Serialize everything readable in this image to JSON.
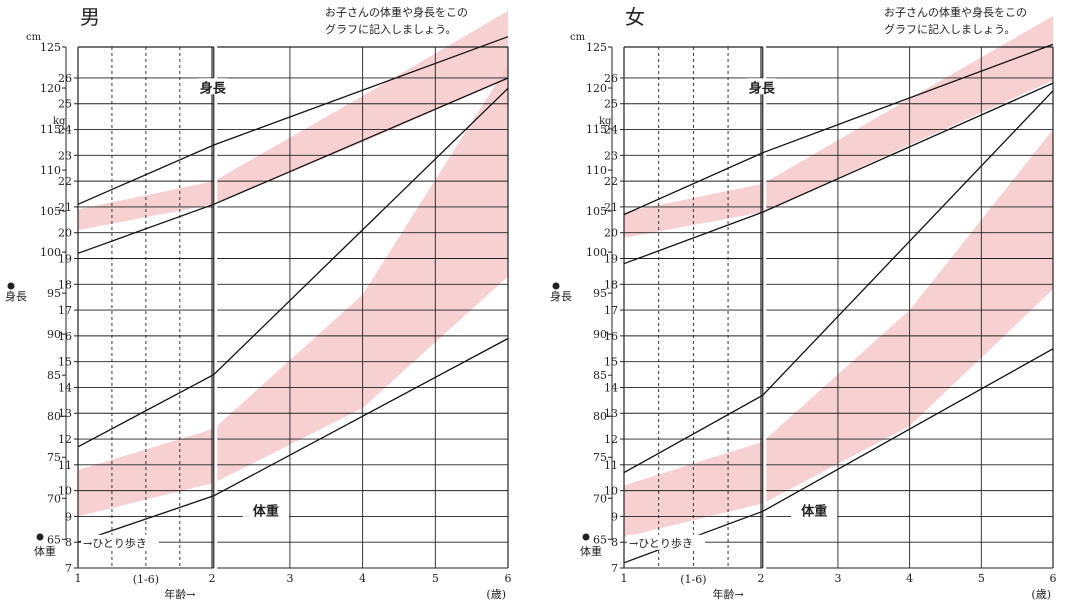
{
  "header": {
    "note_line1": "お子さんの体重や身長をこの",
    "note_line2": "グラフに記入しましょう。"
  },
  "colors": {
    "band": "#f6c9c9",
    "male_title": "#222222",
    "female_title": "#e0464b",
    "grid": "#222222"
  },
  "chart_data": [
    {
      "type": "line",
      "sex_label": "男",
      "title_color": "#222222",
      "height_unit": "cm",
      "weight_unit": "kg",
      "height_axis_label": "身長",
      "weight_axis_label": "体重",
      "height_curve_label": "身長",
      "weight_curve_label": "体重",
      "walking_label": "→ひとり歩き",
      "x_range_label": "(1-6)",
      "xlabel": "年齢→",
      "x_unit": "(歳)",
      "x_ticks": [
        "1",
        "2",
        "3",
        "4",
        "5",
        "6"
      ],
      "height_ticks": [
        65,
        70,
        75,
        80,
        85,
        90,
        95,
        100,
        105,
        110,
        115,
        120,
        125
      ],
      "weight_ticks": [
        7,
        8,
        9,
        10,
        11,
        12,
        13,
        14,
        15,
        16,
        17,
        18,
        19,
        20,
        21,
        22,
        23,
        24,
        25,
        26
      ],
      "ylim_weight": [
        7,
        27.2
      ],
      "ylim_height": [
        61.5,
        125
      ],
      "weight_band": {
        "lower": [
          [
            1,
            9.0
          ],
          [
            2,
            10.3
          ],
          [
            4,
            13.2
          ],
          [
            6,
            18.3
          ]
        ],
        "upper": [
          [
            1,
            10.8
          ],
          [
            2,
            12.4
          ],
          [
            4,
            17.6
          ],
          [
            6,
            26.5
          ]
        ]
      },
      "height_band": {
        "lower": [
          [
            1,
            20.1
          ],
          [
            2,
            21.1
          ],
          [
            4,
            23.5
          ],
          [
            6,
            26.0
          ]
        ],
        "upper": [
          [
            1,
            20.9
          ],
          [
            2,
            22.0
          ],
          [
            4,
            25.3
          ],
          [
            6,
            28.6
          ]
        ]
      },
      "series": [
        {
          "name": "身長 上限",
          "points": [
            [
              1,
              21.1
            ],
            [
              2,
              23.4
            ],
            [
              6,
              27.6
            ]
          ]
        },
        {
          "name": "身長 下限",
          "points": [
            [
              1,
              19.2
            ],
            [
              2,
              21.1
            ],
            [
              6,
              26.0
            ]
          ]
        },
        {
          "name": "体重 上限",
          "points": [
            [
              1,
              11.7
            ],
            [
              2,
              14.5
            ],
            [
              6,
              25.6
            ]
          ]
        },
        {
          "name": "体重 下限",
          "points": [
            [
              1,
              8.0
            ],
            [
              2,
              9.8
            ],
            [
              6,
              15.9
            ]
          ]
        }
      ]
    },
    {
      "type": "line",
      "sex_label": "女",
      "title_color": "#e0464b",
      "height_unit": "cm",
      "weight_unit": "kg",
      "height_axis_label": "身長",
      "weight_axis_label": "体重",
      "height_curve_label": "身長",
      "weight_curve_label": "体重",
      "walking_label": "→ひとり歩き",
      "x_range_label": "(1-6)",
      "xlabel": "年齢→",
      "x_unit": "(歳)",
      "x_ticks": [
        "1",
        "2",
        "3",
        "4",
        "5",
        "6"
      ],
      "height_ticks": [
        65,
        70,
        75,
        80,
        85,
        90,
        95,
        100,
        105,
        110,
        115,
        120,
        125
      ],
      "weight_ticks": [
        7,
        8,
        9,
        10,
        11,
        12,
        13,
        14,
        15,
        16,
        17,
        18,
        19,
        20,
        21,
        22,
        23,
        24,
        25,
        26
      ],
      "ylim_weight": [
        7,
        27.2
      ],
      "ylim_height": [
        61.5,
        125
      ],
      "weight_band": {
        "lower": [
          [
            1,
            8.2
          ],
          [
            2,
            9.5
          ],
          [
            4,
            12.5
          ],
          [
            6,
            17.8
          ]
        ],
        "upper": [
          [
            1,
            10.2
          ],
          [
            2,
            11.9
          ],
          [
            4,
            17.0
          ],
          [
            6,
            24.0
          ]
        ]
      },
      "height_band": {
        "lower": [
          [
            1,
            19.8
          ],
          [
            2,
            20.8
          ],
          [
            4,
            23.4
          ],
          [
            6,
            25.9
          ]
        ],
        "upper": [
          [
            1,
            20.8
          ],
          [
            2,
            21.9
          ],
          [
            4,
            25.2
          ],
          [
            6,
            28.4
          ]
        ]
      },
      "series": [
        {
          "name": "身長 上限",
          "points": [
            [
              1,
              20.7
            ],
            [
              2,
              23.1
            ],
            [
              6,
              27.3
            ]
          ]
        },
        {
          "name": "身長 下限",
          "points": [
            [
              1,
              18.8
            ],
            [
              2,
              20.8
            ],
            [
              6,
              25.8
            ]
          ]
        },
        {
          "name": "体重 上限",
          "points": [
            [
              1,
              10.7
            ],
            [
              2,
              13.7
            ],
            [
              6,
              25.5
            ]
          ]
        },
        {
          "name": "体重 下限",
          "points": [
            [
              1,
              7.2
            ],
            [
              2,
              9.2
            ],
            [
              6,
              15.5
            ]
          ]
        }
      ]
    }
  ]
}
